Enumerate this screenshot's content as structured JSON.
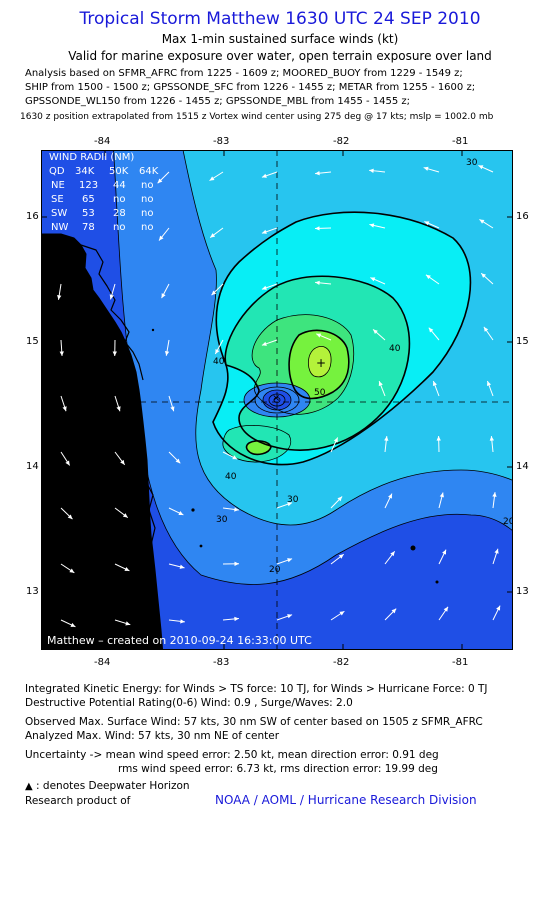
{
  "header": {
    "title": "Tropical Storm Matthew 1630 UTC 24 SEP 2010",
    "subtitle1": "Max 1-min sustained surface winds (kt)",
    "subtitle2": "Valid for marine exposure over water, open terrain exposure over land",
    "analysis_lines": [
      "Analysis based on SFMR_AFRC from 1225 - 1609 z; MOORED_BUOY from 1229 - 1549 z;",
      "SHIP from 1500 - 1500 z; GPSSONDE_SFC from 1226 - 1455 z; METAR from 1255 - 1600 z;",
      "GPSSONDE_WL150 from 1226 - 1455 z; GPSSONDE_MBL from 1455 - 1455 z;"
    ],
    "position_line": "1630 z position extrapolated from 1515 z Vortex wind center using 275 deg @ 17 kts; mslp = 1002.0 mb"
  },
  "map": {
    "lon_ticks": [
      "-84",
      "-83",
      "-82",
      "-81"
    ],
    "lat_ticks": [
      "16",
      "15",
      "14",
      "13"
    ],
    "center_label": "×",
    "max_wind_label": "+",
    "contour_labels": [
      "20",
      "20",
      "20",
      "30",
      "30",
      "30",
      "40",
      "40",
      "40",
      "50"
    ],
    "credit": "Matthew – created on 2010-09-24 16:33:00 UTC",
    "colors": {
      "c_lt20": "#1f4fe6",
      "c_20_30": "#2f86f2",
      "c_30_40": "#27c5ef",
      "c_40_50": "#08eef5",
      "c_50_60": "#22e6b4",
      "c_60_70": "#3ee47e",
      "c_70_80": "#76f23e",
      "c_80_90": "#b4f23a",
      "land": "#000000"
    }
  },
  "wind_radii": {
    "title": "WIND RADII (NM)",
    "headers": [
      "QD",
      "34K",
      "50K",
      "64K"
    ],
    "rows": [
      [
        "NE",
        "123",
        "44",
        "no"
      ],
      [
        "SE",
        "65",
        "no",
        "no"
      ],
      [
        "SW",
        "53",
        "28",
        "no"
      ],
      [
        "NW",
        "78",
        "no",
        "no"
      ]
    ]
  },
  "footer": {
    "ike": "Integrated Kinetic Energy:  for Winds > TS force: 10 TJ,  for Winds > Hurricane Force: 0 TJ",
    "dpr": "Destructive Potential Rating(0-6)   Wind: 0.9 , Surge/Waves: 2.0",
    "obs_max": "Observed Max. Surface Wind: 57 kts, 30 nm SW of center based on 1505 z SFMR_AFRC",
    "ana_max": "Analyzed Max. Wind: 57 kts, 30 nm NE of center",
    "unc1": "Uncertainty -> mean wind speed error: 2.50 kt,   mean direction error: 0.91 deg",
    "unc2": "rms wind speed error: 6.73 kt,   rms direction error: 19.99 deg",
    "legend": ": denotes Deepwater Horizon",
    "research": "Research product of",
    "org": "NOAA / AOML / Hurricane Research Division"
  }
}
